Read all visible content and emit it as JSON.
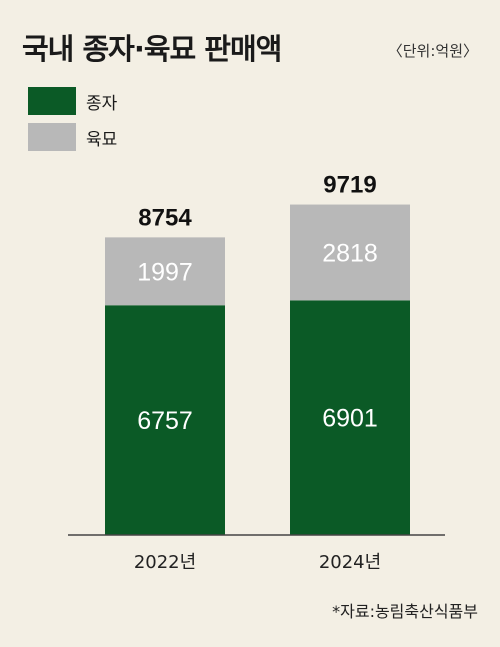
{
  "header": {
    "title": "국내 종자·육묘 판매액",
    "unit": "〈단위:억원〉"
  },
  "source": "*자료:농림축산식품부",
  "colors": {
    "seed": "#0b5a26",
    "seedling": "#b8b8b8",
    "axis": "#444444"
  },
  "chart_data": {
    "type": "bar",
    "stacked": true,
    "categories": [
      "2022년",
      "2024년"
    ],
    "series": [
      {
        "name": "종자",
        "values": [
          6757,
          6901
        ]
      },
      {
        "name": "육묘",
        "values": [
          1997,
          2818
        ]
      }
    ],
    "totals": [
      8754,
      9719
    ],
    "legend_position": "top-left",
    "grid": false
  }
}
